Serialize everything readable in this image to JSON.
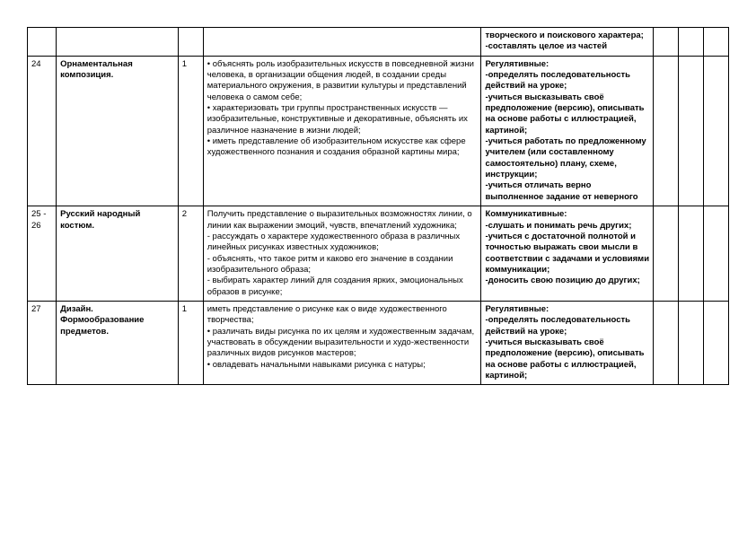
{
  "rows": [
    {
      "num": "",
      "topic": "",
      "hours": "",
      "desc": "",
      "reg": "творческого и поискового характера;\n-составлять целое из частей"
    },
    {
      "num": "24",
      "topic": "Орнаментальная композиция.",
      "hours": "1",
      "desc": "• объяснять роль изобразительных искусств в повседневной жизни человека, в организации общения людей, в создании среды материального окружения, в развитии культуры и представлений человека о самом себе;\n• характеризовать три группы пространственных искусств — изобразительные, конструктивные и декоративные, объяснять их различное назначение в жизни людей;\n• иметь представление об изобразительном искусстве как сфере художественного познания и создания образной картины мира;",
      "reg": "Регулятивные:\n-определять последовательность действий на уроке;\n-учиться высказывать своё предположение (версию), описывать на основе работы с иллюстрацией, картиной;\n-учиться работать по предложенному учителем (или составленному самостоятельно) плану, схеме, инструкции;\n-учиться отличать верно выполненное задание от неверного"
    },
    {
      "num": "25 - 26",
      "topic": "Русский народный костюм.",
      "hours": "2",
      "desc": "Получить представление о выразительных возможностях линии, о линии как выражении эмоций, чувств, впечатлений художника;\n- рассуждать о характере художественного образа в различных линейных рисунках известных художников;\n- объяснять, что такое ритм и каково его значение в создании изобразительного образа;\n- выбирать характер линий для создания ярких, эмоциональных образов в рисунке;",
      "reg": "Коммуникативные:\n-слушать и понимать речь других;\n-учиться с достаточной полнотой и точностью выражать свои мысли в соответствии с задачами и условиями коммуникации;\n-доносить свою позицию до других;"
    },
    {
      "num": "27",
      "topic": "Дизайн. Формообразование предметов.",
      "hours": "1",
      "desc": "иметь представление о рисунке как о виде художественного творчества;\n• различать виды рисунка по их целям и художественным задачам, участвовать в обсуждении выразительности и худо-жественности различных видов рисунков мастеров;\n• овладевать начальными навыками рисунка с натуры;",
      "reg": "Регулятивные:\n-определять последовательность действий на уроке;\n-учиться высказывать своё предположение (версию), описывать на основе работы с иллюстрацией, картиной;"
    }
  ]
}
